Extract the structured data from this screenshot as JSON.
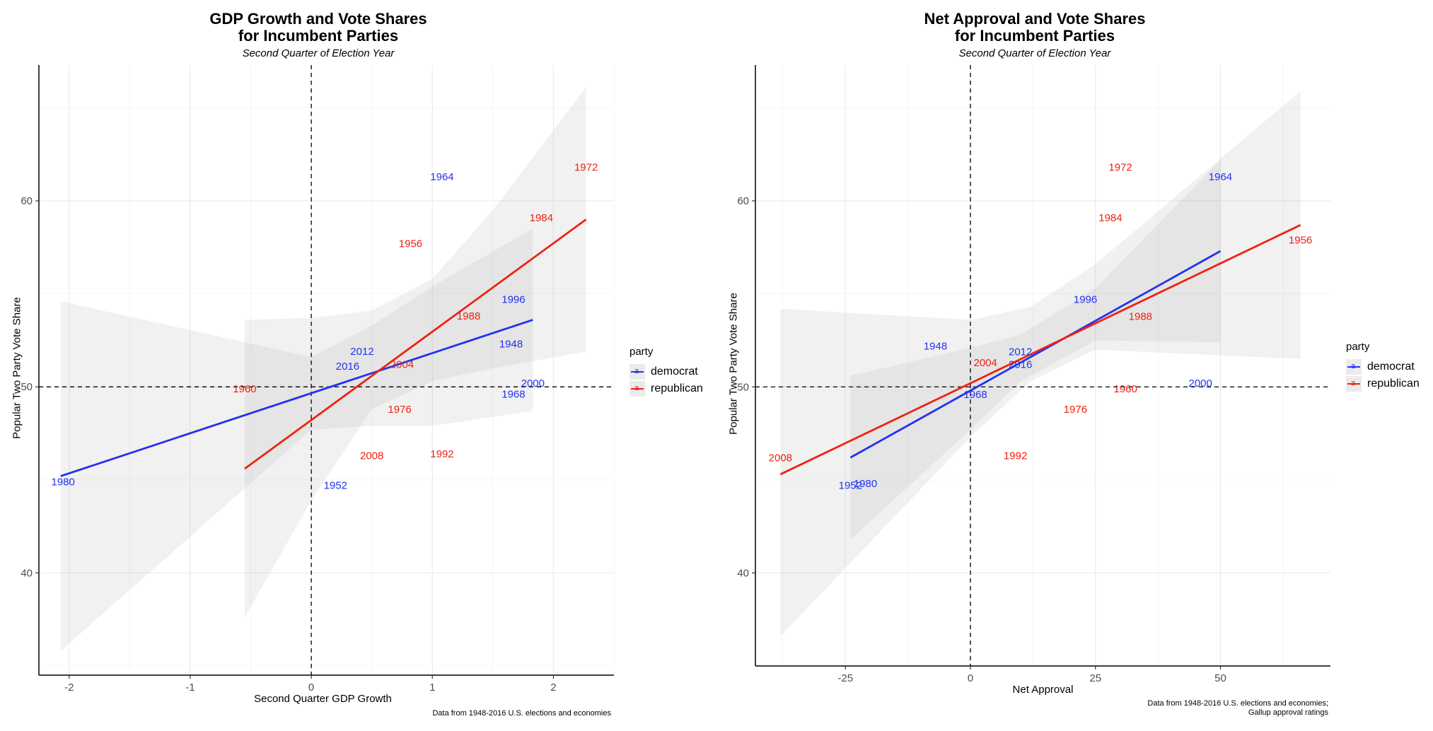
{
  "chart_data": [
    {
      "type": "scatter",
      "title": "GDP Growth and Vote Shares\nfor Incumbent Parties",
      "title_lines": [
        "GDP Growth and Vote Shares",
        "for Incumbent Parties"
      ],
      "subtitle": "Second Quarter of Election Year",
      "xlabel": "Second Quarter GDP Growth",
      "ylabel": "Popular Two Party Vote Share",
      "caption_lines": [
        "Data from 1948-2016 U.S. elections and economies"
      ],
      "xlim": [
        -2.25,
        2.5
      ],
      "ylim": [
        34.5,
        67.3
      ],
      "xticks": [
        -2,
        -1,
        0,
        1,
        2
      ],
      "yticks": [
        40,
        50,
        60
      ],
      "grid": true,
      "reference_lines": {
        "x": 0,
        "y": 50
      },
      "legend": {
        "title": "party",
        "position": "right",
        "entries": [
          "democrat",
          "republican"
        ]
      },
      "colors": {
        "democrat": "#2233ee",
        "republican": "#ee2211"
      },
      "points": [
        {
          "label": "1980",
          "party": "democrat",
          "x": -2.05,
          "y": 44.9
        },
        {
          "label": "1952",
          "party": "democrat",
          "x": 0.2,
          "y": 44.7
        },
        {
          "label": "2016",
          "party": "democrat",
          "x": 0.3,
          "y": 51.1
        },
        {
          "label": "2012",
          "party": "democrat",
          "x": 0.42,
          "y": 51.9
        },
        {
          "label": "1964",
          "party": "democrat",
          "x": 1.08,
          "y": 61.3
        },
        {
          "label": "1996",
          "party": "democrat",
          "x": 1.67,
          "y": 54.7
        },
        {
          "label": "1948",
          "party": "democrat",
          "x": 1.65,
          "y": 52.3
        },
        {
          "label": "1968",
          "party": "democrat",
          "x": 1.67,
          "y": 49.6
        },
        {
          "label": "2000",
          "party": "democrat",
          "x": 1.83,
          "y": 50.2
        },
        {
          "label": "1960",
          "party": "republican",
          "x": -0.55,
          "y": 49.9
        },
        {
          "label": "2004",
          "party": "republican",
          "x": 0.75,
          "y": 51.2
        },
        {
          "label": "1976",
          "party": "republican",
          "x": 0.73,
          "y": 48.8
        },
        {
          "label": "2008",
          "party": "republican",
          "x": 0.5,
          "y": 46.3
        },
        {
          "label": "1992",
          "party": "republican",
          "x": 1.08,
          "y": 46.4
        },
        {
          "label": "1956",
          "party": "republican",
          "x": 0.82,
          "y": 57.7
        },
        {
          "label": "1988",
          "party": "republican",
          "x": 1.3,
          "y": 53.8
        },
        {
          "label": "1984",
          "party": "republican",
          "x": 1.9,
          "y": 59.1
        },
        {
          "label": "1972",
          "party": "republican",
          "x": 2.27,
          "y": 61.8
        }
      ],
      "fits": [
        {
          "party": "democrat",
          "x": [
            -2.07,
            1.83
          ],
          "y": [
            45.2,
            53.6
          ],
          "band_x": [
            -2.07,
            0.0,
            0.5,
            1.0,
            1.83
          ],
          "band_lo": [
            35.8,
            47.7,
            47.9,
            47.9,
            48.7
          ],
          "band_hi": [
            54.6,
            51.6,
            53.3,
            55.4,
            58.5
          ]
        },
        {
          "party": "republican",
          "x": [
            -0.55,
            2.27
          ],
          "y": [
            45.6,
            59.0
          ],
          "band_x": [
            -0.55,
            0.0,
            0.5,
            1.0,
            1.5,
            2.27
          ],
          "band_lo": [
            37.6,
            43.9,
            48.8,
            50.3,
            51.0,
            51.9
          ],
          "band_hi": [
            53.6,
            53.7,
            54.1,
            55.8,
            59.5,
            66.1
          ]
        }
      ]
    },
    {
      "type": "scatter",
      "title": "Net Approval and Vote Shares\nfor Incumbent Parties",
      "title_lines": [
        "Net Approval and Vote Shares",
        "for Incumbent Parties"
      ],
      "subtitle": "Second Quarter of Election Year",
      "xlabel": "Net Approval",
      "ylabel": "Popular Two Party Vote Share",
      "caption_lines": [
        "Data from 1948-2016 U.S. elections and economies;",
        "Gallup approval ratings"
      ],
      "xlim": [
        -43,
        72
      ],
      "ylim": [
        35,
        67.3
      ],
      "xticks": [
        -25,
        0,
        25,
        50
      ],
      "yticks": [
        40,
        50,
        60
      ],
      "grid": true,
      "reference_lines": {
        "x": 0,
        "y": 50
      },
      "legend": {
        "title": "party",
        "position": "right",
        "entries": [
          "democrat",
          "republican"
        ]
      },
      "colors": {
        "democrat": "#2233ee",
        "republican": "#ee2211"
      },
      "points": [
        {
          "label": "1952",
          "party": "democrat",
          "x": -24,
          "y": 44.7
        },
        {
          "label": "1980",
          "party": "democrat",
          "x": -21,
          "y": 44.8
        },
        {
          "label": "1948",
          "party": "democrat",
          "x": -7,
          "y": 52.2
        },
        {
          "label": "2012",
          "party": "democrat",
          "x": 10,
          "y": 51.9
        },
        {
          "label": "2016",
          "party": "democrat",
          "x": 10,
          "y": 51.2
        },
        {
          "label": "1968",
          "party": "democrat",
          "x": 1,
          "y": 49.6
        },
        {
          "label": "1996",
          "party": "democrat",
          "x": 23,
          "y": 54.7
        },
        {
          "label": "1964",
          "party": "democrat",
          "x": 50,
          "y": 61.3
        },
        {
          "label": "2000",
          "party": "democrat",
          "x": 46,
          "y": 50.2
        },
        {
          "label": "2008",
          "party": "republican",
          "x": -38,
          "y": 46.2
        },
        {
          "label": "2004",
          "party": "republican",
          "x": 3,
          "y": 51.3
        },
        {
          "label": "1992",
          "party": "republican",
          "x": 9,
          "y": 46.3
        },
        {
          "label": "1976",
          "party": "republican",
          "x": 21,
          "y": 48.8
        },
        {
          "label": "1960",
          "party": "republican",
          "x": 31,
          "y": 49.9
        },
        {
          "label": "1988",
          "party": "republican",
          "x": 34,
          "y": 53.8
        },
        {
          "label": "1984",
          "party": "republican",
          "x": 28,
          "y": 59.1
        },
        {
          "label": "1972",
          "party": "republican",
          "x": 30,
          "y": 61.8
        },
        {
          "label": "1956",
          "party": "republican",
          "x": 66,
          "y": 57.9
        }
      ],
      "fits": [
        {
          "party": "democrat",
          "x": [
            -24,
            50
          ],
          "y": [
            46.2,
            57.3
          ],
          "band_x": [
            -24,
            0,
            10,
            25,
            50
          ],
          "band_lo": [
            41.8,
            47.7,
            50.3,
            52.5,
            52.4
          ],
          "band_hi": [
            50.6,
            52.1,
            52.8,
            55.3,
            62.2
          ]
        },
        {
          "party": "republican",
          "x": [
            -38,
            66
          ],
          "y": [
            45.3,
            58.7
          ],
          "band_x": [
            -38,
            0,
            12,
            25,
            66
          ],
          "band_lo": [
            36.6,
            47.3,
            50.3,
            52.0,
            51.5
          ],
          "band_hi": [
            54.2,
            53.6,
            54.3,
            56.6,
            65.9
          ]
        }
      ]
    }
  ]
}
